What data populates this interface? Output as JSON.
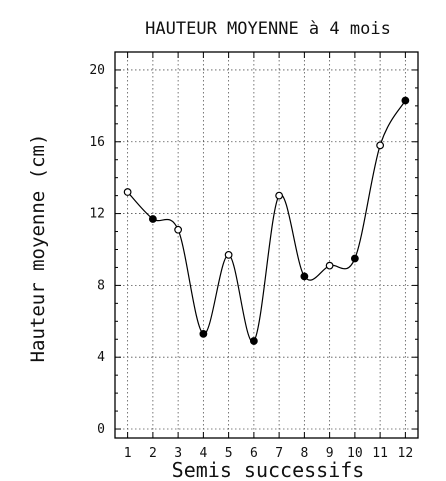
{
  "chart_data": {
    "type": "line",
    "title": "HAUTEUR MOYENNE à 4 mois",
    "xlabel": "Semis successifs",
    "ylabel": "Hauteur moyenne (cm)",
    "x": [
      1,
      2,
      3,
      4,
      5,
      6,
      7,
      8,
      9,
      10,
      11,
      12
    ],
    "values": [
      13.2,
      11.7,
      11.1,
      5.3,
      9.7,
      4.9,
      13.0,
      8.5,
      9.1,
      9.5,
      15.8,
      18.3
    ],
    "filled": [
      false,
      true,
      false,
      true,
      false,
      true,
      false,
      true,
      false,
      true,
      false,
      true
    ],
    "xlim": [
      0.5,
      12.5
    ],
    "ylim": [
      -0.5,
      21
    ],
    "x_ticks": [
      "1",
      "2",
      "3",
      "4",
      "5",
      "6",
      "7",
      "8",
      "9",
      "10",
      "11",
      "12"
    ],
    "y_ticks": [
      0,
      4,
      8,
      12,
      16,
      20
    ],
    "y_tick_labels": [
      "0",
      "4",
      "8",
      "12",
      "16",
      "20"
    ],
    "grid": true,
    "legend": "none"
  }
}
